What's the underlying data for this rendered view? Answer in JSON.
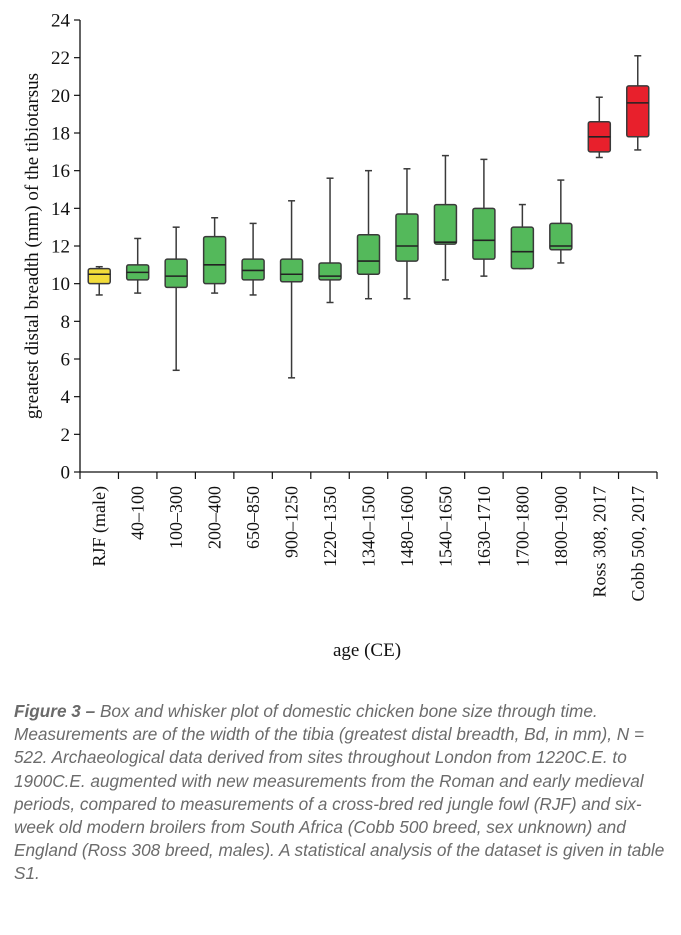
{
  "chart_data": {
    "type": "box",
    "ylabel": "greatest distal breadth (mm) of the tibiotarsus",
    "xlabel": "age (CE)",
    "ylim": [
      0,
      24
    ],
    "yticks": [
      0,
      2,
      4,
      6,
      8,
      10,
      12,
      14,
      16,
      18,
      20,
      22,
      24
    ],
    "grid": false,
    "colors": {
      "yellow": "#f2dc3a",
      "green": "#54b95b",
      "red": "#e8202c",
      "stroke": "#3a3a3a"
    },
    "boxes": [
      {
        "label": "RJF (male)",
        "min": 9.4,
        "q1": 10.0,
        "median": 10.5,
        "q3": 10.8,
        "max": 10.9,
        "color": "yellow"
      },
      {
        "label": "40–100",
        "min": 9.5,
        "q1": 10.2,
        "median": 10.6,
        "q3": 11.0,
        "max": 12.4,
        "color": "green"
      },
      {
        "label": "100–300",
        "min": 5.4,
        "q1": 9.8,
        "median": 10.4,
        "q3": 11.3,
        "max": 13.0,
        "color": "green"
      },
      {
        "label": "200–400",
        "min": 9.5,
        "q1": 10.0,
        "median": 11.0,
        "q3": 12.5,
        "max": 13.5,
        "color": "green"
      },
      {
        "label": "650–850",
        "min": 9.4,
        "q1": 10.2,
        "median": 10.7,
        "q3": 11.3,
        "max": 13.2,
        "color": "green"
      },
      {
        "label": "900–1250",
        "min": 5.0,
        "q1": 10.1,
        "median": 10.5,
        "q3": 11.3,
        "max": 14.4,
        "color": "green"
      },
      {
        "label": "1220–1350",
        "min": 9.0,
        "q1": 10.2,
        "median": 10.4,
        "q3": 11.1,
        "max": 15.6,
        "color": "green"
      },
      {
        "label": "1340–1500",
        "min": 9.2,
        "q1": 10.5,
        "median": 11.2,
        "q3": 12.6,
        "max": 16.0,
        "color": "green"
      },
      {
        "label": "1480–1600",
        "min": 9.2,
        "q1": 11.2,
        "median": 12.0,
        "q3": 13.7,
        "max": 16.1,
        "color": "green"
      },
      {
        "label": "1540–1650",
        "min": 10.2,
        "q1": 12.1,
        "median": 12.2,
        "q3": 14.2,
        "max": 16.8,
        "color": "green"
      },
      {
        "label": "1630–1710",
        "min": 10.4,
        "q1": 11.3,
        "median": 12.3,
        "q3": 14.0,
        "max": 16.6,
        "color": "green"
      },
      {
        "label": "1700–1800",
        "min": 10.8,
        "q1": 10.8,
        "median": 11.7,
        "q3": 13.0,
        "max": 14.2,
        "color": "green"
      },
      {
        "label": "1800–1900",
        "min": 11.1,
        "q1": 11.8,
        "median": 12.0,
        "q3": 13.2,
        "max": 15.5,
        "color": "green"
      },
      {
        "label": "Ross 308, 2017",
        "min": 16.7,
        "q1": 17.0,
        "median": 17.8,
        "q3": 18.6,
        "max": 19.9,
        "color": "red"
      },
      {
        "label": "Cobb 500, 2017",
        "min": 17.1,
        "q1": 17.8,
        "median": 19.6,
        "q3": 20.5,
        "max": 22.1,
        "color": "red"
      }
    ]
  },
  "caption": {
    "label": "Figure 3 –",
    "text": "Box and whisker plot of domestic chicken bone size through time. Measurements are of the width of the tibia (greatest distal breadth, Bd, in mm), N = 522. Archaeological data derived from sites throughout London from 1220C.E. to 1900C.E. augmented with new measurements from the Roman and early medieval periods, compared to measurements of a cross-bred red jungle fowl (RJF) and six-week old modern broilers from South Africa (Cobb 500 breed, sex unknown) and England (Ross 308 breed, males). A statistical analysis of the dataset is given in table S1."
  }
}
